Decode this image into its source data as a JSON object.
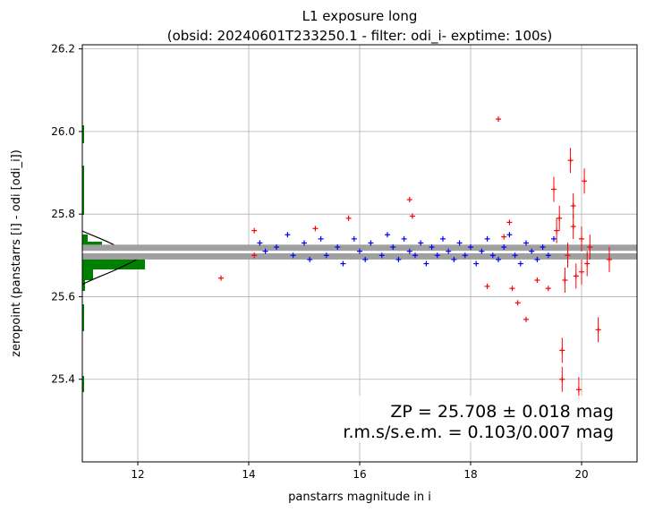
{
  "chart_data": {
    "type": "scatter",
    "title": "L1 exposure long",
    "subtitle": "(obsid: 20240601T233250.1 - filter: odi_i- exptime: 100s)",
    "xlabel": "panstarrs magnitude in i",
    "ylabel": "zeropoint (panstarrs [i] - odi [odi_i])",
    "xlim": [
      11.0,
      21.0
    ],
    "ylim": [
      25.2,
      26.21
    ],
    "xticks": [
      12,
      14,
      16,
      18,
      20
    ],
    "yticks": [
      25.4,
      25.6,
      25.8,
      26.0,
      26.2
    ],
    "xtick_labels": [
      "12",
      "14",
      "16",
      "18",
      "20"
    ],
    "ytick_labels": [
      "25.4",
      "25.6",
      "25.8",
      "26.0",
      "26.2"
    ],
    "grid": true,
    "zp_band": {
      "zp": 25.708,
      "inner_halfwidth": 0.003,
      "outer_halfwidth": 0.018,
      "xmin": 11.0,
      "xmax": 21.0
    },
    "annotations": {
      "zp_text": "ZP = 25.708 ± 0.018 mag",
      "rms_text": "r.m.s/s.e.m. = 0.103/0.007 mag"
    },
    "series": [
      {
        "color": "#0000ff",
        "points": [
          {
            "x": 14.2,
            "y": 25.73
          },
          {
            "x": 14.3,
            "y": 25.71
          },
          {
            "x": 14.5,
            "y": 25.72
          },
          {
            "x": 14.7,
            "y": 25.75
          },
          {
            "x": 14.8,
            "y": 25.7
          },
          {
            "x": 15.0,
            "y": 25.73
          },
          {
            "x": 15.1,
            "y": 25.69
          },
          {
            "x": 15.3,
            "y": 25.74
          },
          {
            "x": 15.4,
            "y": 25.7
          },
          {
            "x": 15.6,
            "y": 25.72
          },
          {
            "x": 15.7,
            "y": 25.68
          },
          {
            "x": 15.9,
            "y": 25.74
          },
          {
            "x": 16.0,
            "y": 25.71
          },
          {
            "x": 16.1,
            "y": 25.69
          },
          {
            "x": 16.2,
            "y": 25.73
          },
          {
            "x": 16.4,
            "y": 25.7
          },
          {
            "x": 16.5,
            "y": 25.75
          },
          {
            "x": 16.6,
            "y": 25.72
          },
          {
            "x": 16.7,
            "y": 25.69
          },
          {
            "x": 16.8,
            "y": 25.74
          },
          {
            "x": 16.9,
            "y": 25.71
          },
          {
            "x": 17.0,
            "y": 25.7
          },
          {
            "x": 17.1,
            "y": 25.73
          },
          {
            "x": 17.2,
            "y": 25.68
          },
          {
            "x": 17.3,
            "y": 25.72
          },
          {
            "x": 17.4,
            "y": 25.7
          },
          {
            "x": 17.5,
            "y": 25.74
          },
          {
            "x": 17.6,
            "y": 25.71
          },
          {
            "x": 17.7,
            "y": 25.69
          },
          {
            "x": 17.8,
            "y": 25.73
          },
          {
            "x": 17.9,
            "y": 25.7
          },
          {
            "x": 18.0,
            "y": 25.72
          },
          {
            "x": 18.1,
            "y": 25.68
          },
          {
            "x": 18.2,
            "y": 25.71
          },
          {
            "x": 18.3,
            "y": 25.74
          },
          {
            "x": 18.4,
            "y": 25.7
          },
          {
            "x": 18.5,
            "y": 25.69
          },
          {
            "x": 18.6,
            "y": 25.72
          },
          {
            "x": 18.7,
            "y": 25.75
          },
          {
            "x": 18.8,
            "y": 25.7
          },
          {
            "x": 18.9,
            "y": 25.68
          },
          {
            "x": 19.0,
            "y": 25.73
          },
          {
            "x": 19.1,
            "y": 25.71
          },
          {
            "x": 19.2,
            "y": 25.69
          },
          {
            "x": 19.3,
            "y": 25.72
          },
          {
            "x": 19.4,
            "y": 25.7
          },
          {
            "x": 19.5,
            "y": 25.74
          }
        ]
      },
      {
        "color": "#ff0000",
        "points": [
          {
            "x": 13.5,
            "y": 25.645
          },
          {
            "x": 14.1,
            "y": 25.76
          },
          {
            "x": 14.1,
            "y": 25.7
          },
          {
            "x": 15.2,
            "y": 25.765
          },
          {
            "x": 15.8,
            "y": 25.79
          },
          {
            "x": 16.9,
            "y": 25.835
          },
          {
            "x": 16.95,
            "y": 25.795
          },
          {
            "x": 18.3,
            "y": 25.625
          },
          {
            "x": 18.5,
            "y": 26.03
          },
          {
            "x": 18.6,
            "y": 25.745
          },
          {
            "x": 18.7,
            "y": 25.78
          },
          {
            "x": 18.75,
            "y": 25.62
          },
          {
            "x": 18.85,
            "y": 25.585
          },
          {
            "x": 19.0,
            "y": 25.545
          },
          {
            "x": 19.2,
            "y": 25.64
          },
          {
            "x": 19.4,
            "y": 25.62
          },
          {
            "x": 19.5,
            "y": 25.86
          },
          {
            "x": 19.55,
            "y": 25.76
          },
          {
            "x": 19.6,
            "y": 25.79
          },
          {
            "x": 19.65,
            "y": 25.4
          },
          {
            "x": 19.65,
            "y": 25.47
          },
          {
            "x": 19.75,
            "y": 25.7
          },
          {
            "x": 19.8,
            "y": 25.93
          },
          {
            "x": 19.85,
            "y": 25.82
          },
          {
            "x": 19.9,
            "y": 25.65
          },
          {
            "x": 19.95,
            "y": 25.375
          },
          {
            "x": 20.0,
            "y": 25.74
          },
          {
            "x": 20.05,
            "y": 25.88
          },
          {
            "x": 20.1,
            "y": 25.68
          },
          {
            "x": 20.15,
            "y": 25.72
          },
          {
            "x": 20.3,
            "y": 25.52
          },
          {
            "x": 20.5,
            "y": 25.69
          },
          {
            "x": 19.7,
            "y": 25.64
          },
          {
            "x": 19.85,
            "y": 25.77
          },
          {
            "x": 20.0,
            "y": 25.66
          }
        ]
      }
    ]
  }
}
